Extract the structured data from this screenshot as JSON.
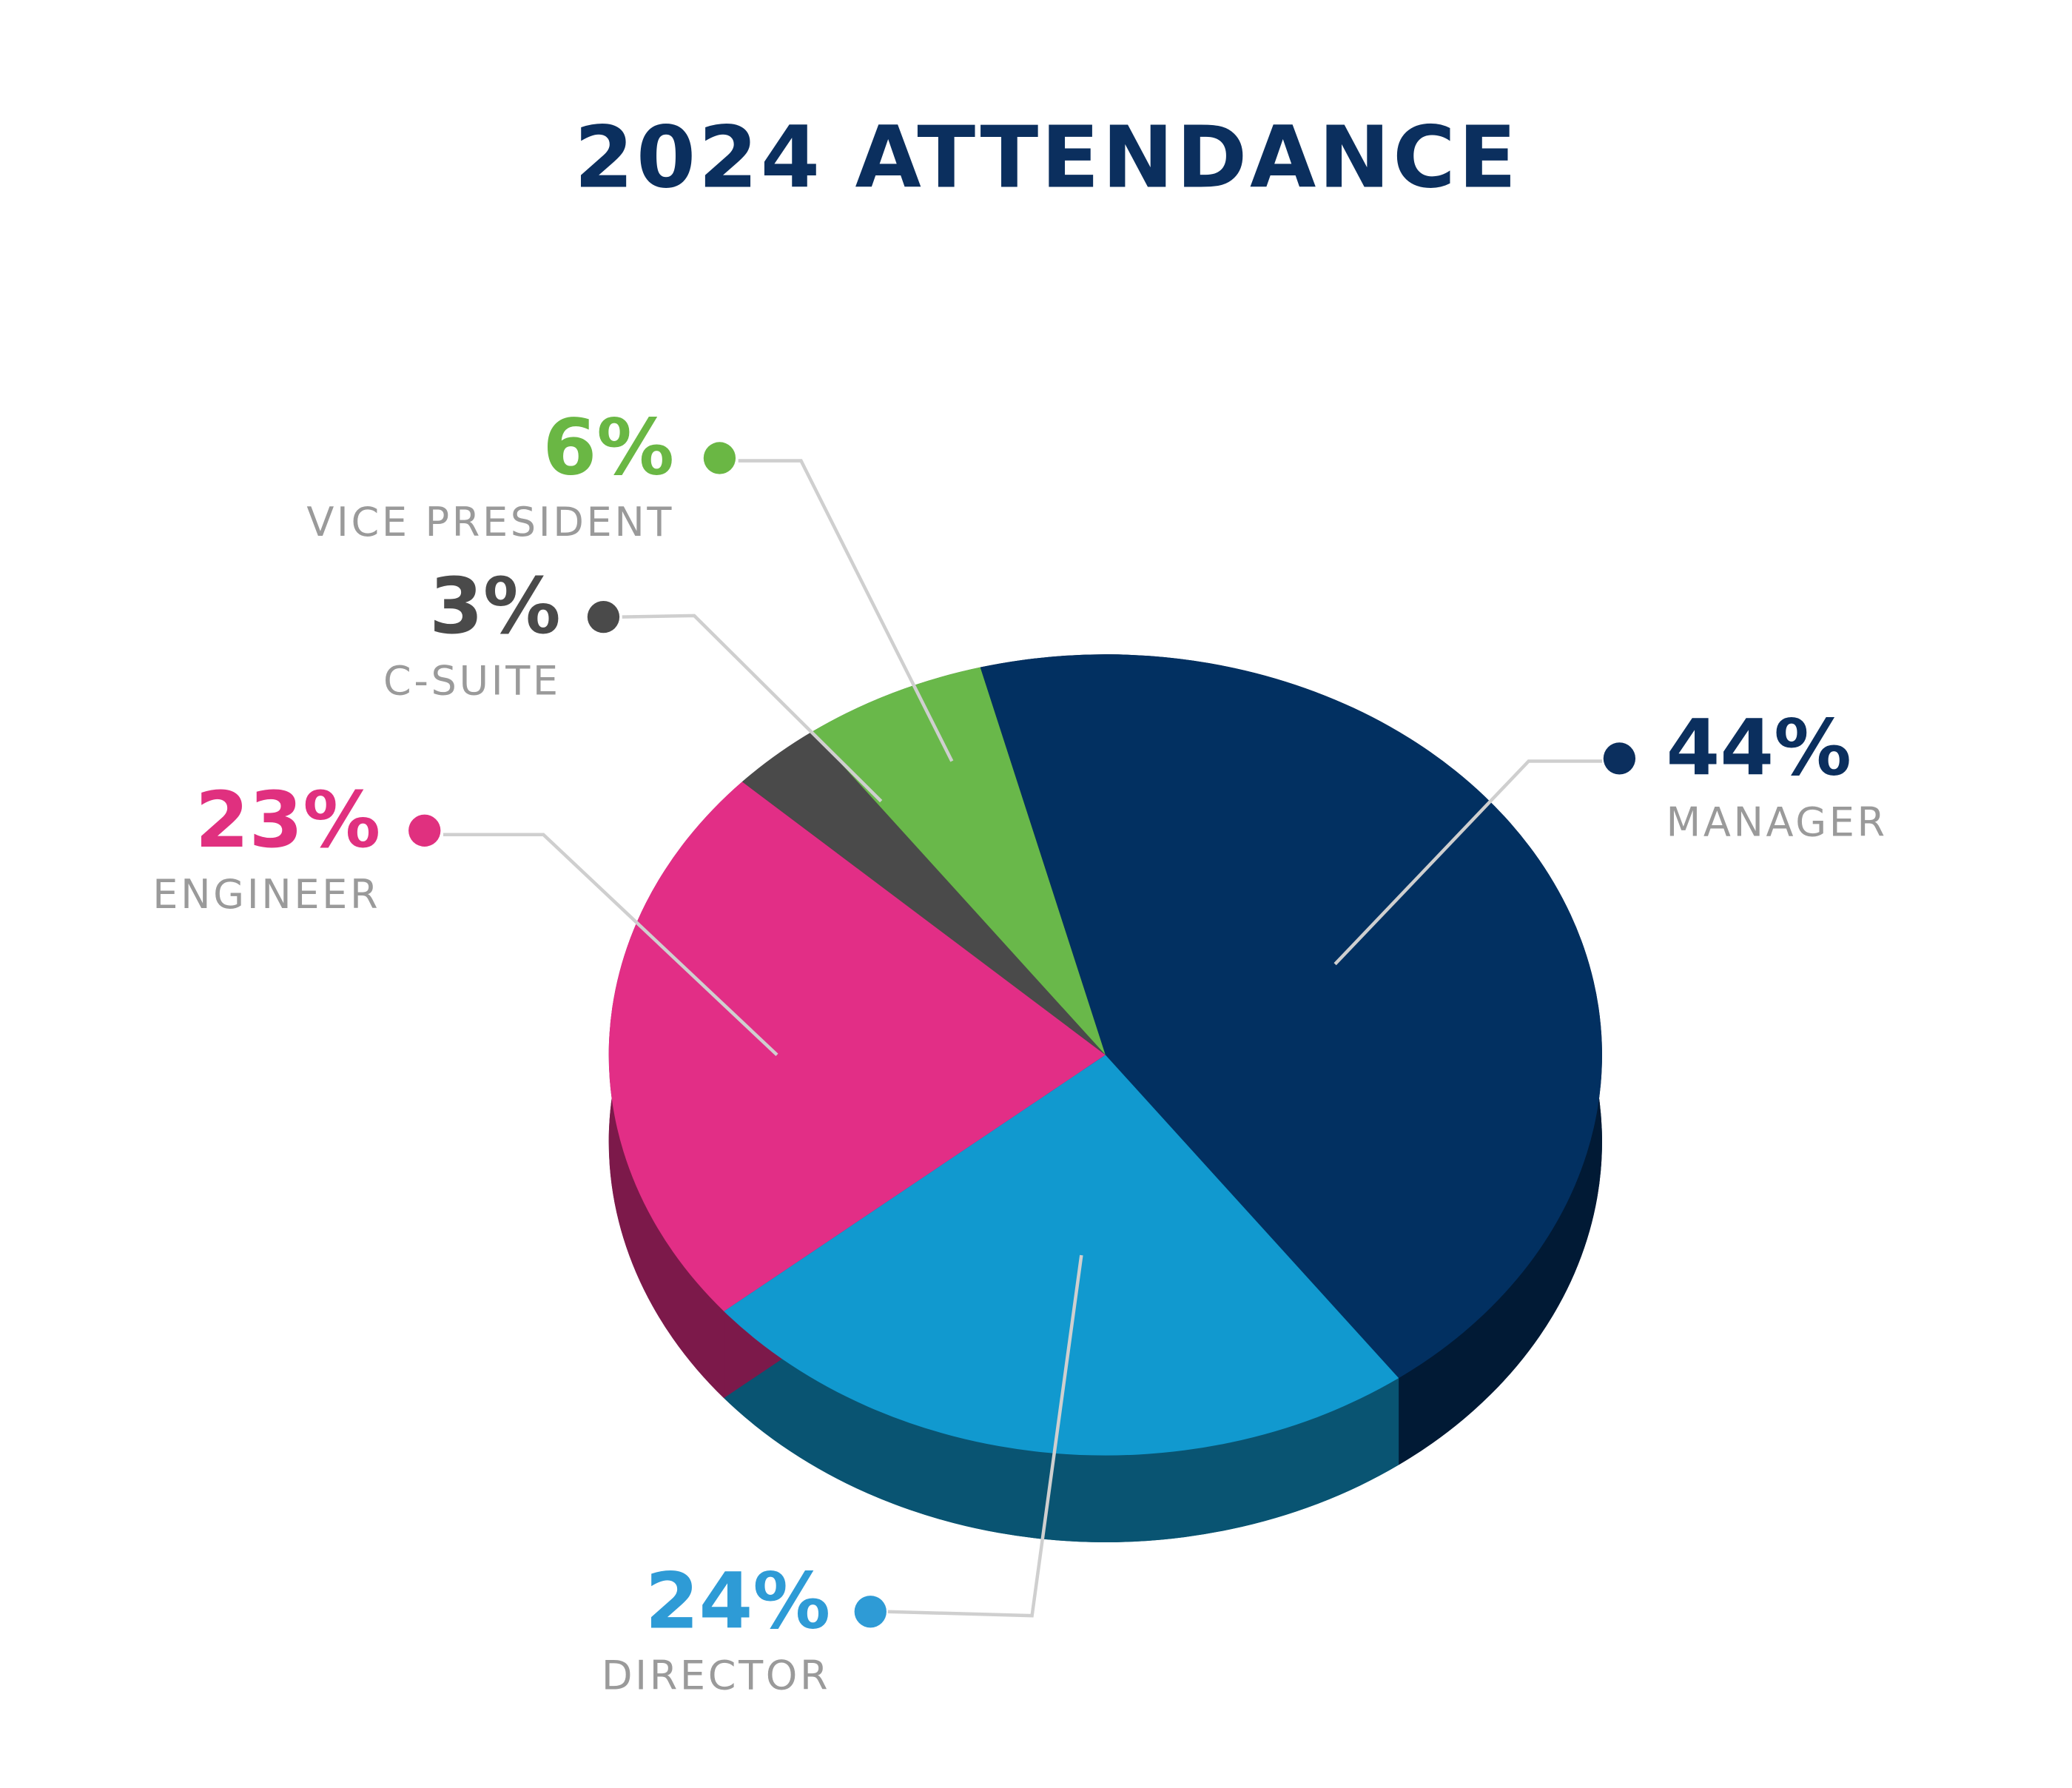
{
  "chart_data": {
    "type": "pie",
    "title": "2024 ATTENDANCE",
    "categories": [
      "MANAGER",
      "DIRECTOR",
      "ENGINEER",
      "C-SUITE",
      "VICE PRESIDENT"
    ],
    "values": [
      44,
      24,
      23,
      3,
      6
    ],
    "value_labels": [
      "44%",
      "24%",
      "23%",
      "3%",
      "6%"
    ],
    "colors": [
      "#023061",
      "#1199cf",
      "#e22e86",
      "#4a4a4a",
      "#69b84a"
    ],
    "label_colors": [
      "#0b2f5e",
      "#2e9bd6",
      "#e0307f",
      "#4a4a4a",
      "#6ab744"
    ]
  }
}
